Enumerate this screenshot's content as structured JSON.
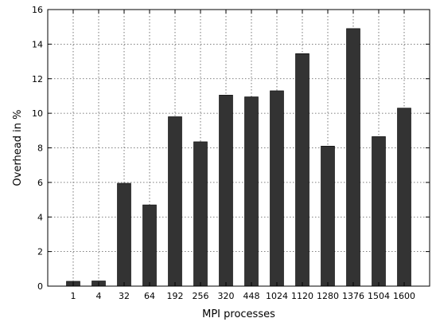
{
  "chart_data": {
    "type": "bar",
    "title": "",
    "xlabel": "MPI processes",
    "ylabel": "Overhead in %",
    "categories": [
      "1",
      "4",
      "32",
      "64",
      "192",
      "256",
      "320",
      "448",
      "1024",
      "1120",
      "1280",
      "1376",
      "1504",
      "1600"
    ],
    "values": [
      0.28,
      0.3,
      5.95,
      4.7,
      9.8,
      8.35,
      11.05,
      10.95,
      11.3,
      13.45,
      8.1,
      14.9,
      8.65,
      10.3
    ],
    "ylim": [
      0,
      16
    ],
    "yticks": [
      0,
      2,
      4,
      6,
      8,
      10,
      12,
      14,
      16
    ],
    "grid": true,
    "bar_color": "#333333"
  }
}
